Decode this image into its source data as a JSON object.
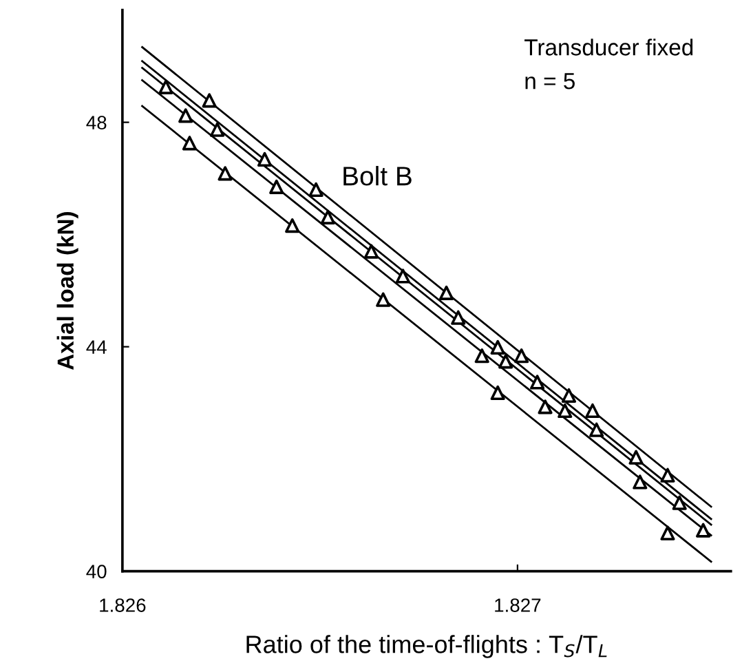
{
  "chart_data": {
    "type": "scatter",
    "xlabel": "Ratio of the time-of-flights : T$_{S}$/T$_{L}$",
    "ylabel": "Axial load (kN)",
    "annotations": [
      "Transducer fixed",
      "n = 5",
      "Bolt B"
    ],
    "xlim": [
      1.826,
      1.82754
    ],
    "xticks": [
      1.826,
      1.827
    ],
    "ylim": [
      40,
      50
    ],
    "yticks": [
      40,
      44,
      48
    ],
    "grid": false,
    "legend": false,
    "series": [
      {
        "marker": "triangle",
        "color": "#000000",
        "x": [
          1.82611,
          1.82622,
          1.82616,
          1.82624,
          1.82617,
          1.82626,
          1.82636,
          1.82649,
          1.82639,
          1.82652,
          1.82643,
          1.82663,
          1.82671,
          1.82666,
          1.82682,
          1.82685,
          1.82691,
          1.82695,
          1.82697,
          1.82701,
          1.82705,
          1.82695,
          1.82707,
          1.82713,
          1.82712,
          1.82719,
          1.8272,
          1.8273,
          1.82731,
          1.82738,
          1.82741,
          1.82738,
          1.82747
        ],
        "values": [
          48.63,
          48.39,
          48.12,
          47.87,
          47.63,
          47.09,
          47.34,
          46.8,
          46.85,
          46.31,
          46.16,
          45.7,
          45.26,
          44.84,
          44.96,
          44.52,
          43.84,
          43.99,
          43.74,
          43.84,
          43.37,
          43.18,
          42.93,
          43.13,
          42.86,
          42.86,
          42.52,
          42.03,
          41.59,
          41.71,
          41.22,
          40.68,
          40.73
        ]
      },
      {
        "type": "line",
        "marker": "none",
        "line_style": "solid",
        "color": "#000000",
        "x": [
          1.82605,
          1.82749
        ],
        "values": [
          49.34,
          41.15
        ]
      },
      {
        "type": "line",
        "marker": "none",
        "line_style": "solid",
        "color": "#000000",
        "x": [
          1.82605,
          1.82749
        ],
        "values": [
          49.09,
          40.93
        ]
      },
      {
        "type": "line",
        "marker": "none",
        "line_style": "solid",
        "color": "#000000",
        "x": [
          1.82605,
          1.82749
        ],
        "values": [
          48.97,
          40.83
        ]
      },
      {
        "type": "line",
        "marker": "none",
        "line_style": "solid",
        "color": "#000000",
        "x": [
          1.82605,
          1.82749
        ],
        "values": [
          48.75,
          40.64
        ]
      },
      {
        "type": "line",
        "marker": "none",
        "line_style": "solid",
        "color": "#000000",
        "x": [
          1.82605,
          1.82749
        ],
        "values": [
          48.29,
          40.17
        ]
      }
    ]
  }
}
